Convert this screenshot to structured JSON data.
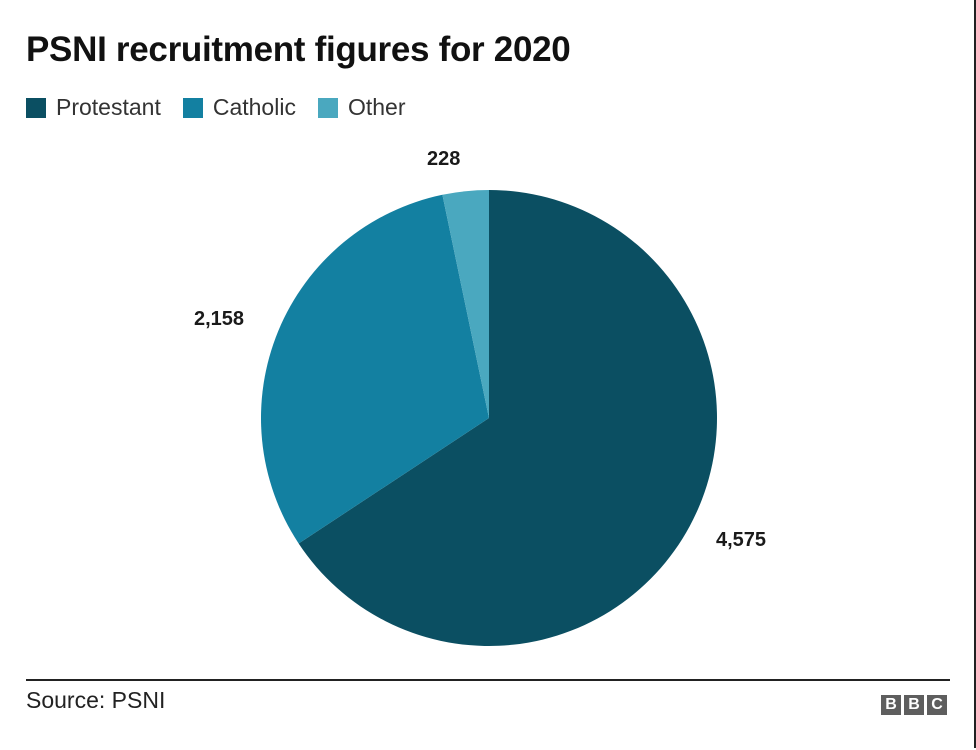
{
  "header": {
    "title": "PSNI recruitment figures for 2020"
  },
  "legend": [
    {
      "label": "Protestant",
      "color": "#0b4f62"
    },
    {
      "label": "Catholic",
      "color": "#1380a1"
    },
    {
      "label": "Other",
      "color": "#4aa8bf"
    }
  ],
  "labels": {
    "protestant": "4,575",
    "catholic": "2,158",
    "other": "228"
  },
  "footer": {
    "source": "Source: PSNI",
    "logo_letters": [
      "B",
      "B",
      "C"
    ]
  },
  "chart_data": {
    "type": "pie",
    "title": "PSNI recruitment figures for 2020",
    "categories": [
      "Protestant",
      "Catholic",
      "Other"
    ],
    "values": [
      4575,
      2158,
      228
    ],
    "colors": [
      "#0b4f62",
      "#1380a1",
      "#4aa8bf"
    ],
    "data_labels": [
      "4,575",
      "2,158",
      "228"
    ],
    "start_angle": "12 o'clock",
    "direction": "clockwise",
    "legend_position": "top-left",
    "source": "PSNI"
  }
}
